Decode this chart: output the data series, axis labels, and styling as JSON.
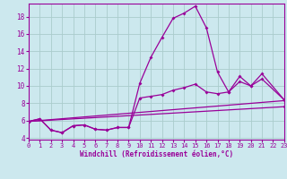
{
  "bg_color": "#cce8ee",
  "line_color": "#990099",
  "grid_color": "#aacccc",
  "xlabel": "Windchill (Refroidissement éolien,°C)",
  "xlim": [
    0,
    23
  ],
  "ylim": [
    3.8,
    19.5
  ],
  "xticks": [
    0,
    1,
    2,
    3,
    4,
    5,
    6,
    7,
    8,
    9,
    10,
    11,
    12,
    13,
    14,
    15,
    16,
    17,
    18,
    19,
    20,
    21,
    22,
    23
  ],
  "yticks": [
    4,
    6,
    8,
    10,
    12,
    14,
    16,
    18
  ],
  "series": [
    {
      "comment": "main spiky curve",
      "x": [
        0,
        1,
        2,
        3,
        4,
        5,
        6,
        7,
        8,
        9,
        10,
        11,
        12,
        13,
        14,
        15,
        16,
        17,
        18,
        19,
        20,
        21,
        23
      ],
      "y": [
        5.9,
        6.2,
        4.9,
        4.6,
        5.4,
        5.5,
        5.0,
        4.9,
        5.2,
        5.2,
        10.3,
        13.3,
        15.6,
        17.8,
        18.4,
        19.2,
        16.7,
        11.6,
        9.3,
        11.1,
        10.0,
        11.4,
        8.4
      ]
    },
    {
      "comment": "mid curve",
      "x": [
        0,
        1,
        2,
        3,
        4,
        5,
        6,
        7,
        8,
        9,
        10,
        11,
        12,
        13,
        14,
        15,
        16,
        17,
        18,
        19,
        20,
        21,
        23
      ],
      "y": [
        5.9,
        6.2,
        4.9,
        4.6,
        5.4,
        5.5,
        5.0,
        4.9,
        5.2,
        5.2,
        8.6,
        8.8,
        9.0,
        9.5,
        9.8,
        10.2,
        9.3,
        9.1,
        9.3,
        10.5,
        10.0,
        10.8,
        8.4
      ]
    },
    {
      "comment": "upper straight line",
      "x": [
        0,
        23
      ],
      "y": [
        5.9,
        8.3
      ]
    },
    {
      "comment": "lower straight line",
      "x": [
        0,
        23
      ],
      "y": [
        5.9,
        7.6
      ]
    }
  ]
}
